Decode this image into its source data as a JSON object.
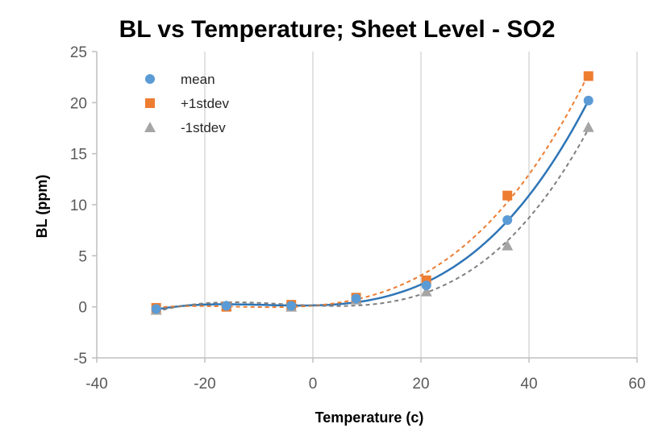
{
  "chart_data": {
    "type": "scatter",
    "title": "BL vs Temperature; Sheet Level - SO2",
    "xlabel": "Temperature (c)",
    "ylabel": "BL (ppm)",
    "xlim": [
      -40,
      60
    ],
    "ylim": [
      -5,
      25
    ],
    "x_ticks": [
      -40,
      -20,
      0,
      20,
      40,
      60
    ],
    "y_ticks": [
      -5,
      0,
      5,
      10,
      15,
      20,
      25
    ],
    "x_tick_labels": [
      "-40",
      "-20",
      "0",
      "20",
      "40",
      "60"
    ],
    "y_tick_labels": [
      "-5",
      "0",
      "5",
      "10",
      "15",
      "20",
      "25"
    ],
    "grid": "vertical",
    "legend_position": "top-left",
    "trendline": "polynomial (dashed for ±1stdev, solid for mean)",
    "series": [
      {
        "name": "mean",
        "marker": "circle",
        "color": "#5b9bd5",
        "line_color": "#2e75b6",
        "line_style": "solid",
        "x": [
          -29,
          -16,
          -4,
          8,
          21,
          36,
          51
        ],
        "y": [
          -0.2,
          0.1,
          0.1,
          0.8,
          2.1,
          8.5,
          20.2
        ]
      },
      {
        "name": "+1stdev",
        "marker": "square",
        "color": "#ed7d31",
        "line_color": "#ed7d31",
        "line_style": "dashed",
        "x": [
          -29,
          -16,
          -4,
          8,
          21,
          36,
          51
        ],
        "y": [
          -0.1,
          0.0,
          0.2,
          0.9,
          2.6,
          10.9,
          22.6
        ]
      },
      {
        "name": "-1stdev",
        "marker": "triangle",
        "color": "#a5a5a5",
        "line_color": "#7f7f7f",
        "line_style": "dashed",
        "x": [
          -29,
          -16,
          -4,
          8,
          21,
          36,
          51
        ],
        "y": [
          -0.3,
          0.1,
          0.0,
          0.7,
          1.5,
          6.0,
          17.6
        ]
      }
    ]
  }
}
